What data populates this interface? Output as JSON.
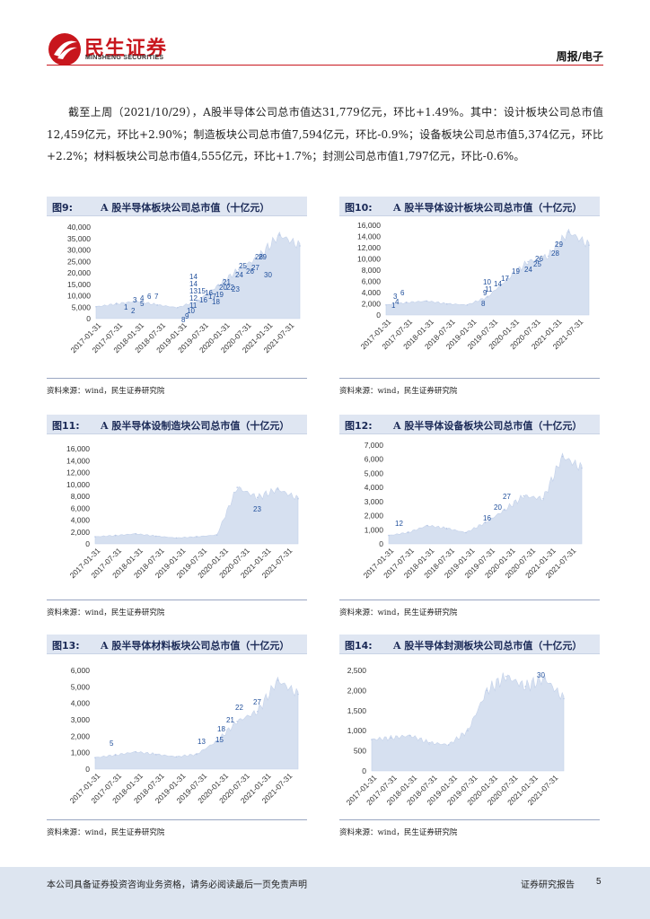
{
  "header": {
    "brand_cn": "民生证券",
    "brand_en": "MINSHENG SECURITIES",
    "report_type": "周报/电子"
  },
  "intro": "截至上周（2021/10/29），A股半导体公司总市值达31,779亿元，环比+1.49%。其中：设计板块公司总市值12,459亿元，环比+2.90%；制造板块公司总市值7,594亿元，环比-0.9%；设备板块公司总市值5,374亿元，环比+2.2%；材料板块公司总市值4,555亿元，环比+1.7%；封测公司总市值1,797亿元，环比-0.6%。",
  "x_tick_labels": [
    "2017-01-31",
    "2017-07-31",
    "2018-01-31",
    "2018-07-31",
    "2019-01-31",
    "2019-07-31",
    "2020-01-31",
    "2020-07-31",
    "2021-01-31",
    "2021-07-31"
  ],
  "x_tick_labels_fig9": [
    "2017-01-31",
    "2017-07-31",
    "2018-01-31",
    "2018-07-31",
    "2019-01-31",
    "2019-07-31",
    "2020-01-31",
    "2020-07-31",
    "2021-01-31",
    "2021-07-31"
  ],
  "x_tick_labels_fig13": [
    "2017-01-31",
    "2017-07-31",
    "2018-01-31",
    "2018-07-31",
    "2019-01-31",
    "2019-07-31",
    "2020-01-31",
    "2020-07-31",
    "2021-01-31",
    "2021-07-31"
  ],
  "x_tick_labels_fig14": [
    "2017-01-31",
    "2017-07-31",
    "2018-01-31",
    "2018-07-31",
    "2019-01-31",
    "2019-07-31",
    "2020-01-31",
    "2020-07-31",
    "2021-01-31",
    "2021-07-31"
  ],
  "chart_data": [
    {
      "id": "fig9",
      "fig_num": "图9:",
      "title": "A 股半导体板块公司总市值（十亿元）",
      "type": "area",
      "y_ticks": [
        "40,000",
        "35,000",
        "30,000",
        "25,000",
        "20,000",
        "15,000",
        "10,000",
        "5,000",
        "0"
      ],
      "ylim": [
        0,
        40000
      ],
      "x": [
        "2017-01",
        "2017-07",
        "2018-01",
        "2018-07",
        "2019-01",
        "2019-07",
        "2020-01",
        "2020-07",
        "2021-01",
        "2021-07",
        "2021-10"
      ],
      "values": [
        5200,
        6400,
        7600,
        6000,
        4800,
        7800,
        14500,
        21500,
        27000,
        36500,
        31779
      ],
      "annotations": [
        "1",
        "2",
        "3",
        "4",
        "5",
        "6",
        "7",
        "8",
        "9",
        "10",
        "11",
        "12",
        "13",
        "14",
        "14",
        "15",
        "16",
        "16",
        "17",
        "18",
        "19",
        "20",
        "21",
        "22",
        "23",
        "24",
        "25",
        "26",
        "27",
        "28",
        "29",
        "30"
      ],
      "source": "资料来源：wind，民生证券研究院"
    },
    {
      "id": "fig10",
      "fig_num": "图10:",
      "title": "A 股半导体设计板块公司总市值（十亿元）",
      "type": "area",
      "y_ticks": [
        "16,000",
        "14,000",
        "12,000",
        "10,000",
        "8,000",
        "6,000",
        "4,000",
        "2,000",
        "0"
      ],
      "ylim": [
        0,
        16000
      ],
      "x": [
        "2017-01",
        "2017-07",
        "2018-01",
        "2018-07",
        "2019-01",
        "2019-07",
        "2020-01",
        "2020-07",
        "2021-01",
        "2021-07",
        "2021-10"
      ],
      "values": [
        1800,
        2200,
        2500,
        2000,
        1800,
        3200,
        6500,
        9500,
        10500,
        14800,
        12459
      ],
      "annotations": [
        "1",
        "3",
        "4",
        "6",
        "8",
        "9",
        "10",
        "11",
        "14",
        "17",
        "19",
        "24",
        "25",
        "26",
        "28",
        "29"
      ],
      "source": "资料来源：wind，民生证券研究院"
    },
    {
      "id": "fig11",
      "fig_num": "图11:",
      "title": "A 股半导体设制造块公司总市值（十亿元）",
      "type": "area",
      "y_ticks": [
        "16,000",
        "14,000",
        "12,000",
        "10,000",
        "8,000",
        "6,000",
        "4,000",
        "2,000",
        "0"
      ],
      "ylim": [
        0,
        16000
      ],
      "x": [
        "2017-01",
        "2017-07",
        "2018-01",
        "2018-07",
        "2019-01",
        "2019-07",
        "2020-01",
        "2020-07",
        "2021-01",
        "2021-07",
        "2021-10"
      ],
      "values": [
        1200,
        1400,
        1700,
        1300,
        1000,
        1200,
        1500,
        9500,
        7800,
        9200,
        7594
      ],
      "annotations": [
        "23"
      ],
      "source": "资料来源：wind，民生证券研究院"
    },
    {
      "id": "fig12",
      "fig_num": "图12:",
      "title": "A 股半导体设备板块公司总市值（十亿元）",
      "type": "area",
      "y_ticks": [
        "7,000",
        "6,000",
        "5,000",
        "4,000",
        "3,000",
        "2,000",
        "1,000",
        "0"
      ],
      "ylim": [
        0,
        7000
      ],
      "x": [
        "2017-01",
        "2017-07",
        "2018-01",
        "2018-07",
        "2019-01",
        "2019-07",
        "2020-01",
        "2020-07",
        "2021-01",
        "2021-07",
        "2021-10"
      ],
      "values": [
        600,
        800,
        1300,
        1100,
        800,
        1500,
        2400,
        3400,
        3200,
        6200,
        5374
      ],
      "annotations": [
        "12",
        "16",
        "20",
        "27"
      ],
      "source": "资料来源：wind，民生证券研究院"
    },
    {
      "id": "fig13",
      "fig_num": "图13:",
      "title": "A 股半导体材料板块公司总市值（十亿元）",
      "type": "area",
      "y_ticks": [
        "6,000",
        "5,000",
        "4,000",
        "3,000",
        "2,000",
        "1,000",
        "0"
      ],
      "ylim": [
        0,
        6000
      ],
      "x": [
        "2017-01",
        "2017-07",
        "2018-01",
        "2018-07",
        "2019-01",
        "2019-07",
        "2020-01",
        "2020-07",
        "2021-01",
        "2021-07",
        "2021-10"
      ],
      "values": [
        700,
        850,
        1050,
        900,
        750,
        900,
        1700,
        2900,
        3500,
        5400,
        4555
      ],
      "annotations": [
        "5",
        "13",
        "15",
        "18",
        "21",
        "22",
        "27"
      ],
      "source": "资料来源：wind，民生证券研究院"
    },
    {
      "id": "fig14",
      "fig_num": "图14:",
      "title": "A 股半导体封测板块公司总市值（十亿元）",
      "type": "area",
      "y_ticks": [
        "2,500",
        "2,000",
        "1,500",
        "1,000",
        "500",
        "0"
      ],
      "ylim": [
        0,
        2500
      ],
      "x": [
        "2017-01",
        "2017-07",
        "2018-01",
        "2018-07",
        "2019-01",
        "2019-07",
        "2020-01",
        "2020-07",
        "2021-01",
        "2021-07",
        "2021-10"
      ],
      "values": [
        780,
        820,
        880,
        700,
        650,
        1000,
        2000,
        2350,
        2100,
        2300,
        1797
      ],
      "annotations": [
        "30"
      ],
      "source": "资料来源：wind，民生证券研究院"
    }
  ],
  "footer": {
    "disclaimer": "本公司具备证券投资咨询业务资格，请务必阅读最后一页免责声明",
    "report_type": "证券研究报告",
    "page": "5"
  },
  "colors": {
    "brand": "#c8161d",
    "area": "#d6e0f0",
    "annotation": "#1f4e9b",
    "title_bar": "#dfe6f2"
  }
}
